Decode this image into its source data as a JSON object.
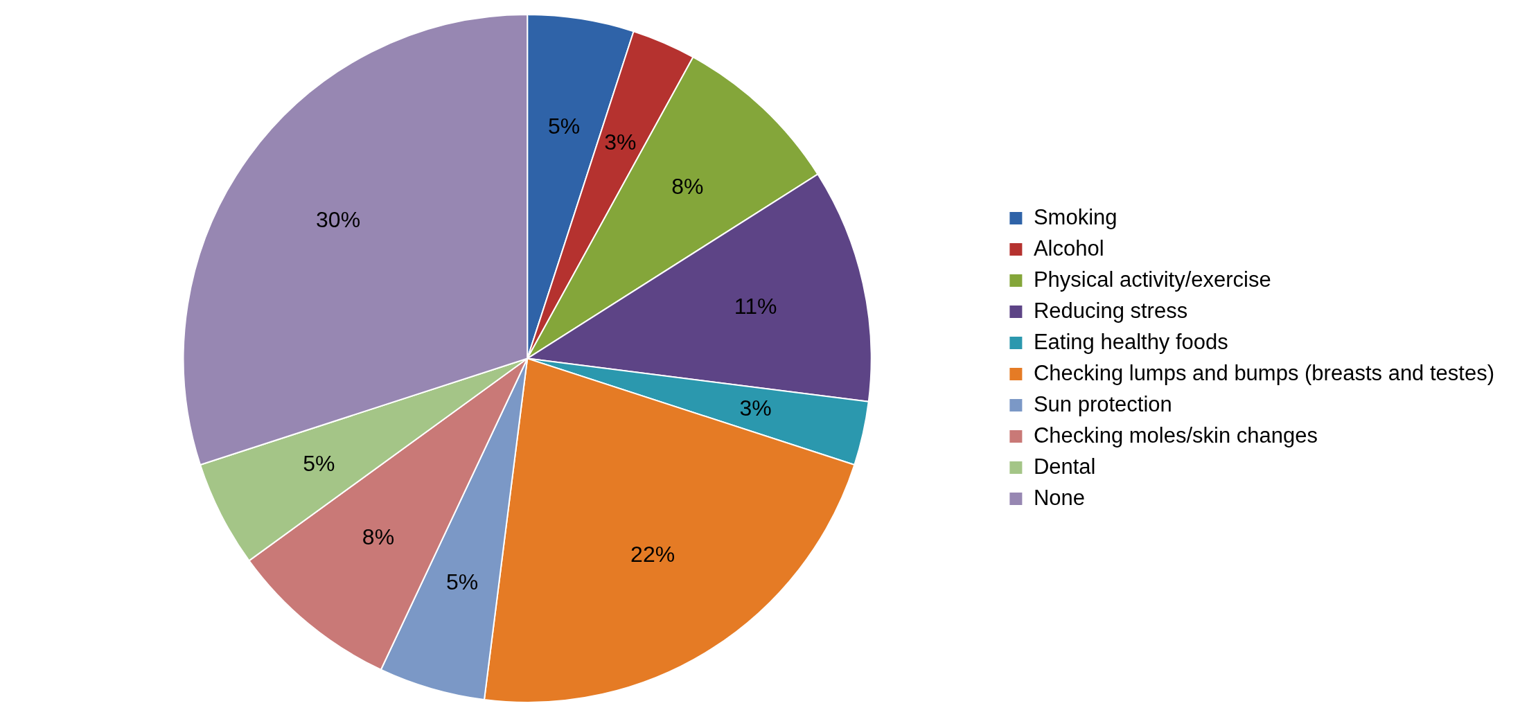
{
  "chart_data": {
    "type": "pie",
    "categories": [
      "Smoking",
      "Alcohol",
      "Physical activity/exercise",
      "Reducing stress",
      "Eating healthy foods",
      "Checking lumps and bumps (breasts and testes)",
      "Sun protection",
      "Checking moles/skin changes",
      "Dental",
      "None"
    ],
    "values": [
      5,
      3,
      8,
      11,
      3,
      22,
      5,
      8,
      5,
      30
    ],
    "colors": [
      "#2f63a8",
      "#b5322f",
      "#84a63a",
      "#5d4486",
      "#2b98ae",
      "#e57b25",
      "#7b98c6",
      "#c97977",
      "#a4c587",
      "#9787b2"
    ],
    "value_labels": [
      "5%",
      "3%",
      "8%",
      "11%",
      "3%",
      "22%",
      "5%",
      "8%",
      "5%",
      "30%"
    ],
    "legend": "right"
  }
}
